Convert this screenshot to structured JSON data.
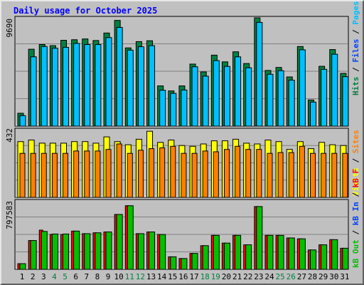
{
  "title": "Daily usage for October 2025",
  "axis_max": {
    "hits": "9690",
    "visits": "432",
    "kbytes": "797583"
  },
  "legend": {
    "top": [
      {
        "text": "Hits",
        "color": "#008040"
      },
      {
        "text": " / ",
        "color": "#000000"
      },
      {
        "text": "Files",
        "color": "#0040ff"
      },
      {
        "text": " / ",
        "color": "#000000"
      },
      {
        "text": "Pages",
        "color": "#00c0ff"
      }
    ],
    "middle": [
      {
        "text": "Visits",
        "color": "#ffff00"
      },
      {
        "text": " / ",
        "color": "#000000"
      },
      {
        "text": "Sites",
        "color": "#ff8000"
      }
    ],
    "bottom": [
      {
        "text": "kB Out",
        "color": "#00c000"
      },
      {
        "text": " / ",
        "color": "#000000"
      },
      {
        "text": "kB In",
        "color": "#0040ff"
      },
      {
        "text": " / ",
        "color": "#000000"
      },
      {
        "text": "kB F",
        "color": "#ff0000"
      }
    ]
  },
  "colors": {
    "hits": "#008040",
    "files": "#0040ff",
    "pages": "#00c0ff",
    "visits": "#ffff00",
    "sites": "#ff8000",
    "kbin": "#ff0000",
    "kbout": "#00c000",
    "weekday_label": "#000000",
    "weekend_label": "#008040"
  },
  "chart_data": {
    "type": "bar",
    "title": "Daily usage for October 2025",
    "days": [
      "1",
      "2",
      "3",
      "4",
      "5",
      "6",
      "7",
      "8",
      "9",
      "10",
      "11",
      "12",
      "13",
      "14",
      "15",
      "16",
      "17",
      "18",
      "19",
      "20",
      "21",
      "22",
      "23",
      "24",
      "25",
      "26",
      "27",
      "28",
      "29",
      "30",
      "31"
    ],
    "weekend_days": [
      "4",
      "5",
      "11",
      "12",
      "18",
      "19",
      "25",
      "26"
    ],
    "panels": [
      {
        "name": "hits_files_pages",
        "ymax": 9690,
        "series": [
          {
            "name": "Hits",
            "values": [
              1150,
              6880,
              7300,
              7200,
              7680,
              7730,
              7800,
              7660,
              8330,
              9460,
              7000,
              7560,
              7640,
              3600,
              3150,
              3600,
              5550,
              4850,
              6350,
              5750,
              6650,
              5600,
              9690,
              4980,
              5250,
              4400,
              7120,
              2340,
              5350,
              6850,
              4720
            ]
          },
          {
            "name": "Pages",
            "values": [
              940,
              6200,
              7120,
              6970,
              7050,
              7400,
              7300,
              7300,
              7920,
              8830,
              6800,
              7100,
              7200,
              3210,
              2930,
              3230,
              5310,
              4470,
              5860,
              5340,
              6200,
              5220,
              9280,
              4640,
              4960,
              4110,
              6830,
              2150,
              5080,
              6430,
              4420
            ]
          }
        ]
      },
      {
        "name": "visits_sites",
        "ymax": 432,
        "series": [
          {
            "name": "Visits",
            "values": [
              356,
              366,
              346,
              346,
              346,
              356,
              356,
              346,
              386,
              356,
              336,
              371,
              422,
              351,
              366,
              331,
              326,
              341,
              361,
              361,
              371,
              346,
              341,
              366,
              356,
              306,
              356,
              311,
              351,
              336,
              331
            ]
          },
          {
            "name": "Sites",
            "values": [
              281,
              281,
              281,
              281,
              281,
              296,
              296,
              296,
              306,
              341,
              281,
              301,
              311,
              316,
              326,
              281,
              281,
              296,
              291,
              306,
              326,
              306,
              306,
              281,
              286,
              286,
              326,
              281,
              281,
              281,
              281
            ]
          }
        ]
      },
      {
        "name": "kbytes",
        "ymax": 797583,
        "series": [
          {
            "name": "kB F",
            "values": [
              66000,
              336000,
              457000,
              406000,
              406000,
              446000,
              416000,
              426000,
              436000,
              640000,
              742000,
              416000,
              436000,
              406000,
              146000,
              126000,
              186000,
              276000,
              396000,
              306000,
              396000,
              286000,
              732000,
              396000,
              396000,
              366000,
              356000,
              226000,
              286000,
              346000,
              246000
            ]
          },
          {
            "name": "kB Out",
            "values": [
              66000,
              336000,
              442000,
              412000,
              412000,
              446000,
              416000,
              426000,
              436000,
              640000,
              742000,
              416000,
              436000,
              406000,
              146000,
              126000,
              186000,
              276000,
              396000,
              306000,
              396000,
              286000,
              732000,
              396000,
              396000,
              366000,
              356000,
              226000,
              286000,
              346000,
              246000
            ]
          }
        ]
      }
    ]
  }
}
